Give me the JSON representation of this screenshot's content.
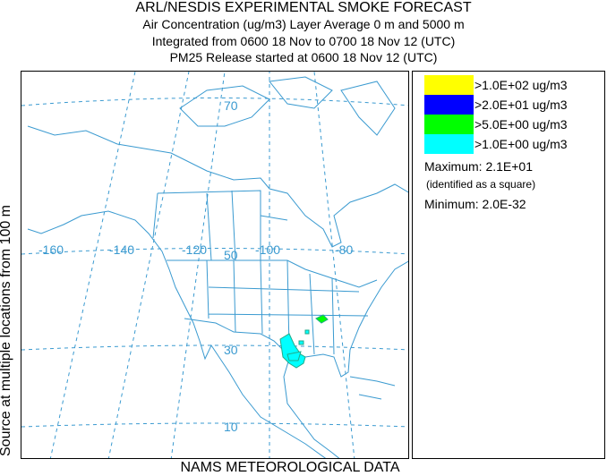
{
  "header": {
    "title": "ARL/NESDIS EXPERIMENTAL SMOKE FORECAST",
    "line1": "Air Concentration (ug/m3) Layer Average    0 m and  5000 m",
    "line2": "Integrated from 0600 18 Nov to 0700 18 Nov 12 (UTC)",
    "line3": "PM25 Release started at 0600 18 Nov 12 (UTC)"
  },
  "side_label": "Source    at multiple locations    from   100 m",
  "bottom_label": "NAMS METEOROLOGICAL DATA",
  "map": {
    "longitude_labels": [
      "-160",
      "-140",
      "-120",
      "-100",
      "-80"
    ],
    "latitude_labels": [
      "70",
      "50",
      "30",
      "10"
    ],
    "coast_color": "#3a9ad0"
  },
  "legend": {
    "levels": [
      {
        "label": ">1.0E+02 ug/m3",
        "color": "#ffff00"
      },
      {
        "label": ">2.0E+01 ug/m3",
        "color": "#0000ff"
      },
      {
        "label": ">5.0E+00 ug/m3",
        "color": "#00ff00"
      },
      {
        "label": ">1.0E+00 ug/m3",
        "color": "#00ffff"
      }
    ],
    "maximum": "Maximum: 2.1E+01",
    "max_note": "(identified as a square)",
    "minimum": "Minimum: 2.0E-32"
  }
}
